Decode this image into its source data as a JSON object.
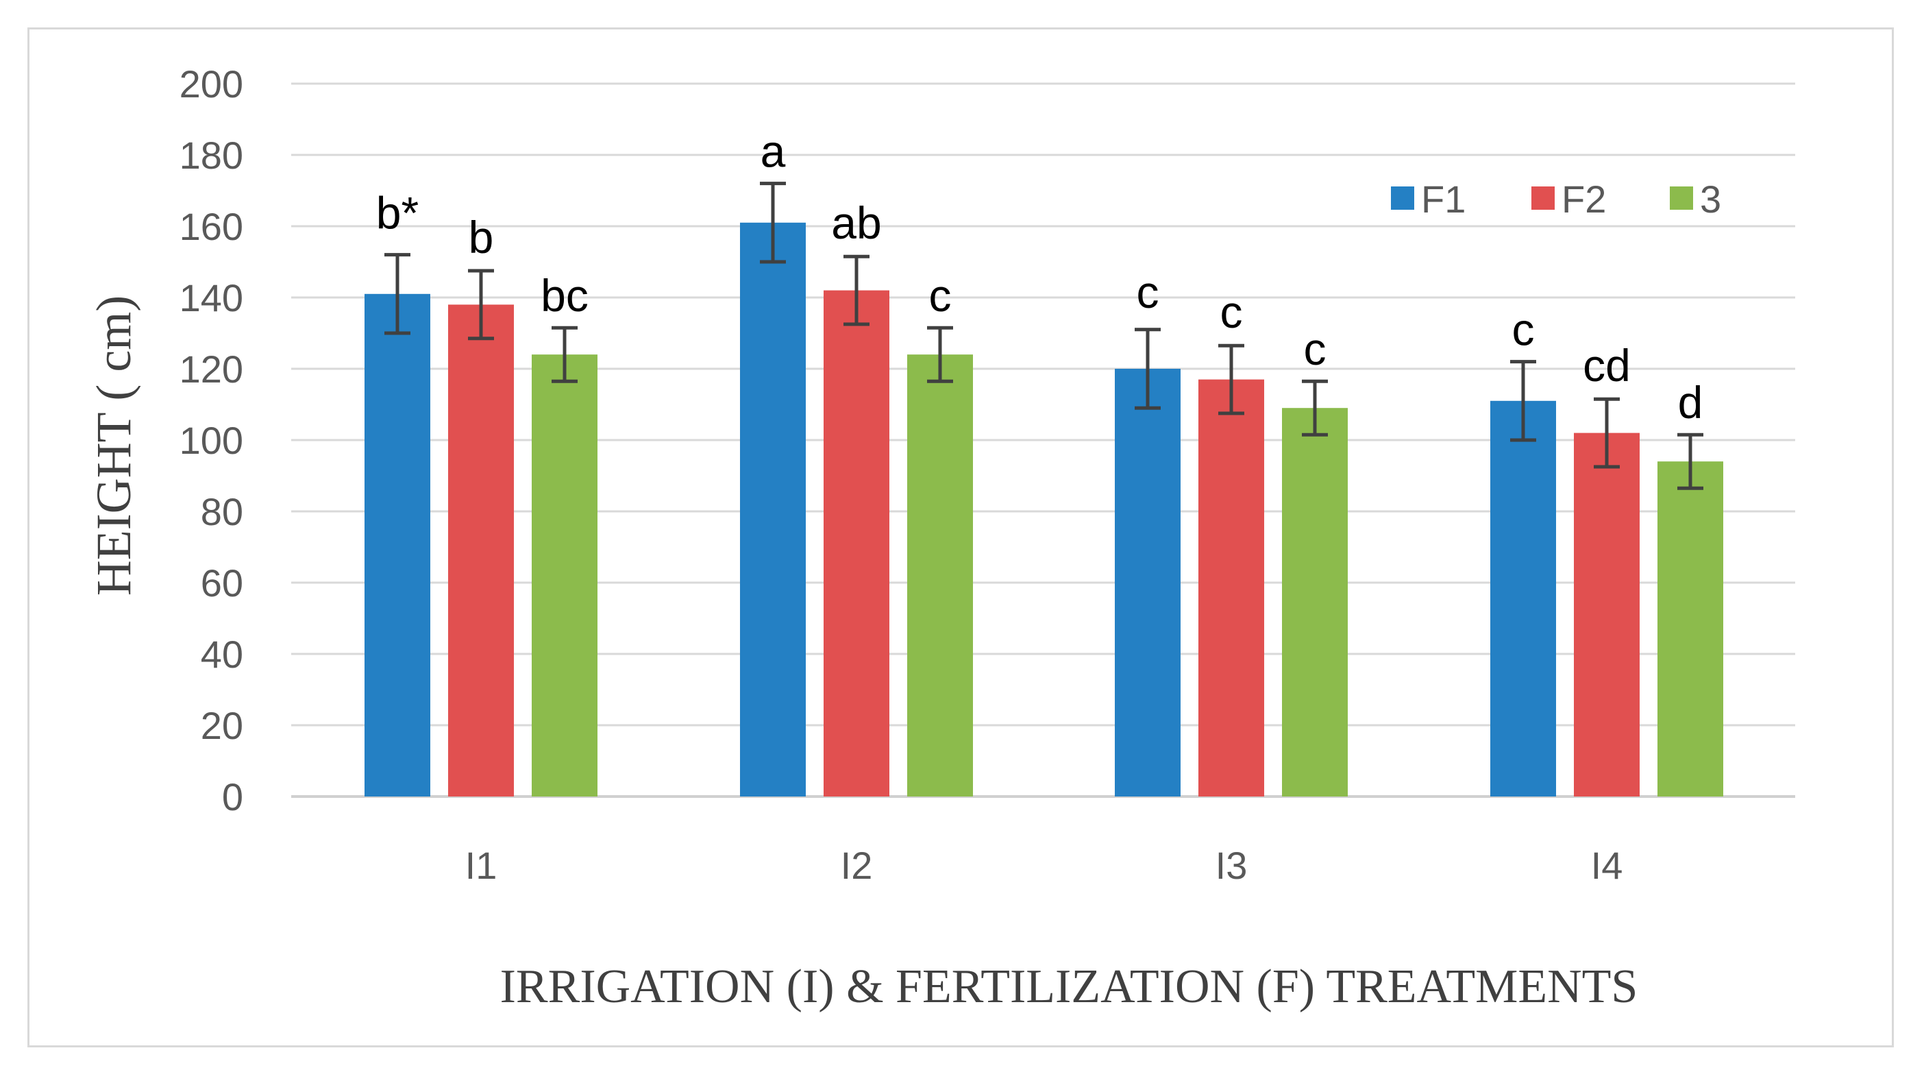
{
  "chart_data": {
    "type": "bar",
    "title": "",
    "xlabel": "IRRIGATION (I) & FERTILIZATION (F) TREATMENTS",
    "ylabel": "HEIGHT ( cm)",
    "ylim": [
      0,
      200
    ],
    "y_ticks": [
      0,
      20,
      40,
      60,
      80,
      100,
      120,
      140,
      160,
      180,
      200
    ],
    "grid": true,
    "legend_position": "top-right",
    "categories": [
      "I1",
      "I2",
      "I3",
      "I4"
    ],
    "series": [
      {
        "name": "F1",
        "color": "#2480c4",
        "values": [
          141,
          161,
          120,
          111
        ],
        "errors": [
          11,
          11,
          11,
          11
        ],
        "labels": [
          "b*",
          "a",
          "c",
          "c"
        ]
      },
      {
        "name": "F2",
        "color": "#e15050",
        "values": [
          138,
          142,
          117,
          102
        ],
        "errors": [
          9.5,
          9.5,
          9.5,
          9.5
        ],
        "labels": [
          "b",
          "ab",
          "c",
          "cd"
        ]
      },
      {
        "name": "3",
        "color": "#8cbb4c",
        "values": [
          124,
          124,
          109,
          94
        ],
        "errors": [
          7.5,
          7.5,
          7.5,
          7.5
        ],
        "labels": [
          "bc",
          "c",
          "c",
          "d"
        ]
      }
    ]
  }
}
